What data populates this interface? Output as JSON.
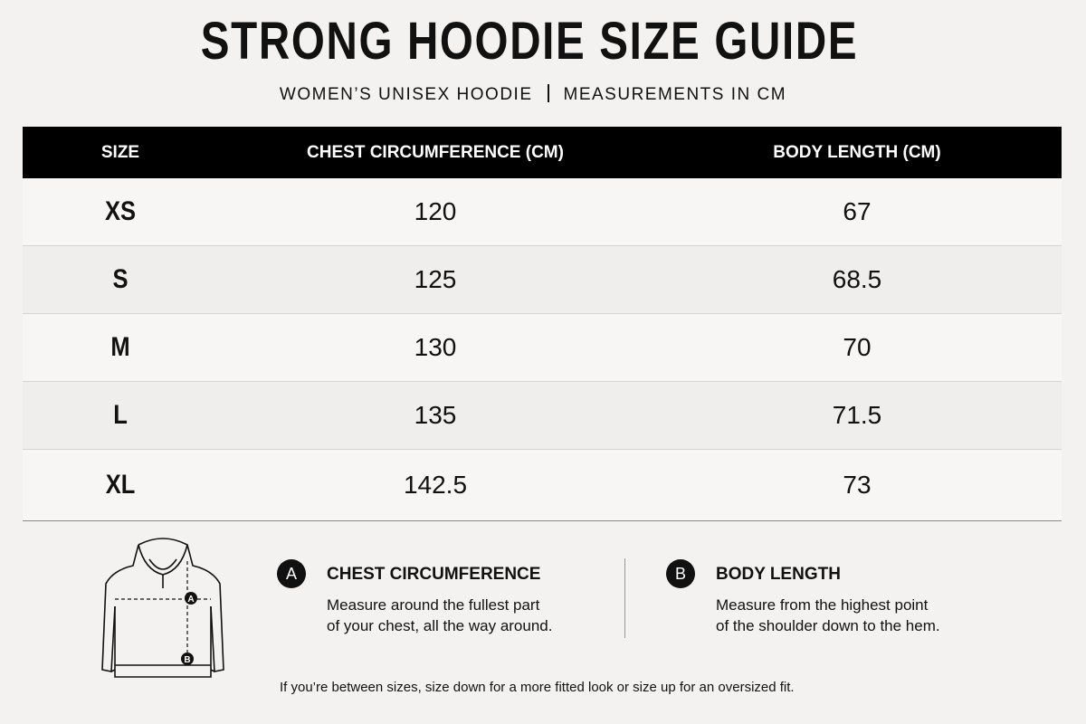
{
  "header": {
    "title": "STRONG HOODIE SIZE GUIDE",
    "subtitle": [
      "WOMEN’S UNISEX HOODIE",
      "MEASUREMENTS IN CM"
    ]
  },
  "table": {
    "columns": [
      "SIZE",
      "CHEST CIRCUMFERENCE (CM)",
      "BODY LENGTH (CM)"
    ],
    "rows": [
      [
        "XS",
        "120",
        "67"
      ],
      [
        "S",
        "125",
        "68.5"
      ],
      [
        "M",
        "130",
        "70"
      ],
      [
        "L",
        "135",
        "71.5"
      ],
      [
        "XL",
        "142.5",
        "73"
      ]
    ]
  },
  "guide": {
    "items": [
      {
        "badge": "A",
        "title": "CHEST CIRCUMFERENCE",
        "text": [
          "Measure around the fullest part",
          "of your chest, all the way around."
        ]
      },
      {
        "badge": "B",
        "title": "BODY LENGTH",
        "text": [
          "Measure from the highest point",
          "of the shoulder down to the hem."
        ]
      }
    ],
    "note": "If you’re between sizes, size down for a more fitted look or size up for an oversized fit."
  }
}
